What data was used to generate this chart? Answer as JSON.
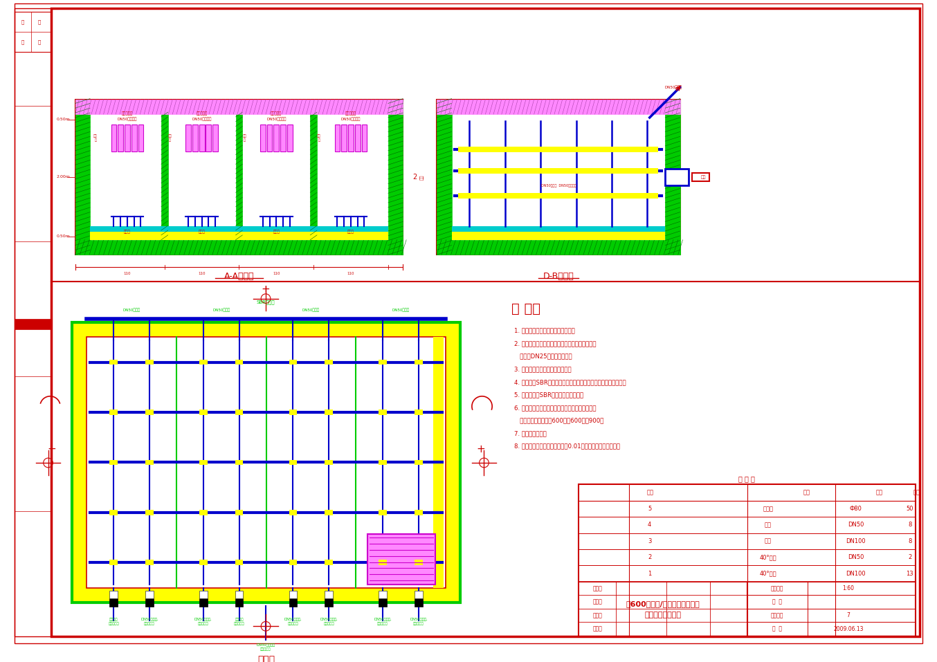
{
  "bg_color": "#ffffff",
  "border_color": "#cc0000",
  "section_aa_label": "A-A剖面图",
  "section_bb_label": "D-B剖面图",
  "plan_label": "平面图",
  "notes_title": "说 明：",
  "notes": [
    "1. 图中断面以米记，尺寸以毫米记。",
    "2. 碳钢技术，扣件，碳钢护板及支撑的搜拾与套条",
    "   均采用DN25的螺旋钢焊制。",
    "3. 管道穿墙时都采用了防渗措施。",
    "4. 本图为个SBR的固定出水管合并固一根出水管插进到厂坐污泥。",
    "5. 必须的四个SBR内都布置完全相同。",
    "6. 地平面以下的管道也设置闸门片，来进行控制。",
    "   闸阀并的尺寸为：长600，宽600，高900。",
    "7. 管道用铸铁管。",
    "8. 采用穿孔排泥管，每个地子有0.01的坡度安内排泥管一侧。"
  ],
  "title": "某600立方米/日牛奶废水处理厂\n废水处理工程设计",
  "drawing_scale": "1:60",
  "drawing_num": "7",
  "drawing_date": "2009.06.13",
  "table_rows": [
    [
      "5",
      "曝气头",
      "Ф80",
      "50"
    ],
    [
      "4",
      "阀阀",
      "DN50",
      "8"
    ],
    [
      "3",
      "阀阀",
      "DN100",
      "8"
    ],
    [
      "2",
      "40°弯头",
      "DN50",
      "2"
    ],
    [
      "1",
      "40°弯头",
      "DN100",
      "13"
    ]
  ],
  "RED": "#cc0000",
  "BLUE": "#0000cc",
  "NAVY": "#000080",
  "LGREEN": "#00cc00",
  "YELLOW": "#ffff00",
  "PINK": "#ff88ff",
  "MAGENTA": "#cc00cc",
  "CYAN": "#00cccc",
  "WHITE": "#ffffff"
}
